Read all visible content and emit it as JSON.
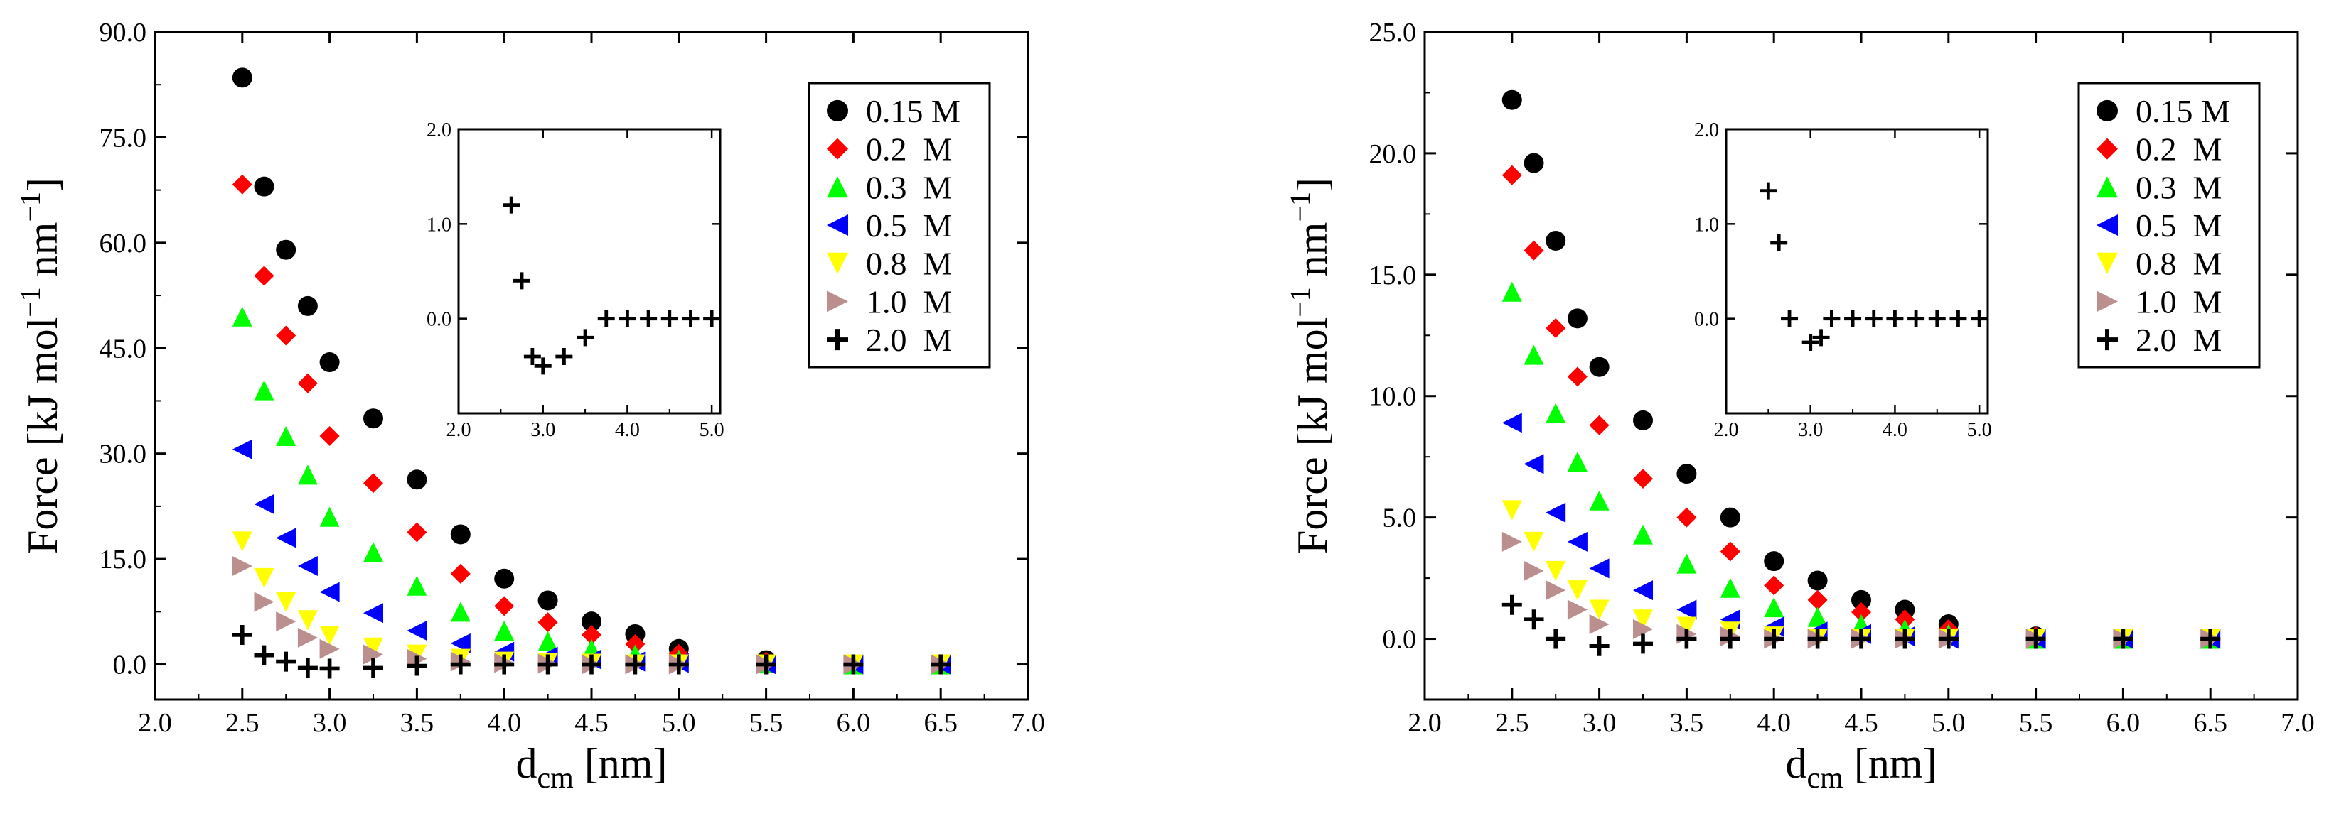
{
  "chart_data": [
    {
      "type": "scatter",
      "title": "",
      "xlabel_main": "d",
      "xlabel_sub": "cm",
      "xlabel_unit": "[nm]",
      "ylabel": "Force [kJ mol",
      "ylabel_mid": " nm",
      "ylabel_close": "]",
      "ylabel_sup": "−1",
      "xlim": [
        2.0,
        7.0
      ],
      "ylim": [
        -5.0,
        90.0
      ],
      "xticks": [
        2.0,
        2.5,
        3.0,
        3.5,
        4.0,
        4.5,
        5.0,
        5.5,
        6.0,
        6.5,
        7.0
      ],
      "xtick_labels": [
        "2.0",
        "2.5",
        "3.0",
        "3.5",
        "4.0",
        "4.5",
        "5.0",
        "5.5",
        "6.0",
        "6.5",
        "7.0"
      ],
      "yticks": [
        0,
        15,
        30,
        45,
        60,
        75,
        90
      ],
      "ytick_labels": [
        "0.0",
        "15.0",
        "30.0",
        "45.0",
        "60.0",
        "75.0",
        "90.0"
      ],
      "legend_position": "top-right",
      "series": [
        {
          "name": "0.15 M",
          "marker": "circle",
          "color": "#000000",
          "x": [
            2.5,
            2.625,
            2.75,
            2.875,
            3.0,
            3.25,
            3.5,
            3.75,
            4.0,
            4.25,
            4.5,
            4.75,
            5.0,
            5.5,
            6.0,
            6.5
          ],
          "y": [
            83.5,
            68,
            59,
            51,
            43,
            35,
            26.3,
            18.5,
            12.2,
            9.1,
            6.1,
            4.3,
            2.2,
            0.6,
            0,
            0
          ]
        },
        {
          "name": "0.2  M",
          "marker": "diamond",
          "color": "#ff0000",
          "x": [
            2.5,
            2.625,
            2.75,
            2.875,
            3.0,
            3.25,
            3.5,
            3.75,
            4.0,
            4.25,
            4.5,
            4.75,
            5.0,
            5.5,
            6.0,
            6.5
          ],
          "y": [
            68.3,
            55.3,
            46.8,
            40,
            32.5,
            25.8,
            18.8,
            12.9,
            8.3,
            6,
            4.2,
            2.9,
            1.5,
            0.4,
            0,
            0
          ]
        },
        {
          "name": "0.3  M",
          "marker": "triangle-up",
          "color": "#00ff00",
          "x": [
            2.5,
            2.625,
            2.75,
            2.875,
            3.0,
            3.25,
            3.5,
            3.75,
            4.0,
            4.25,
            4.5,
            4.75,
            5.0,
            5.5,
            6.0,
            6.5
          ],
          "y": [
            49.5,
            39,
            32.5,
            27,
            21,
            16,
            11.2,
            7.5,
            4.8,
            3.3,
            2.2,
            1.4,
            0.7,
            0.2,
            0,
            0
          ]
        },
        {
          "name": "0.5  M",
          "marker": "triangle-left",
          "color": "#0000ff",
          "x": [
            2.5,
            2.625,
            2.75,
            2.875,
            3.0,
            3.25,
            3.5,
            3.75,
            4.0,
            4.25,
            4.5,
            4.75,
            5.0,
            5.5,
            6.0,
            6.5
          ],
          "y": [
            30.6,
            22.8,
            18,
            14,
            10.3,
            7.3,
            4.8,
            3,
            1.8,
            1.1,
            0.7,
            0.4,
            0.2,
            0,
            0,
            0
          ]
        },
        {
          "name": "0.8  M",
          "marker": "triangle-down",
          "color": "#ffff00",
          "x": [
            2.5,
            2.625,
            2.75,
            2.875,
            3.0,
            3.25,
            3.5,
            3.75,
            4.0,
            4.25,
            4.5,
            4.75,
            5.0,
            5.5,
            6.0,
            6.5
          ],
          "y": [
            17.5,
            12.3,
            8.9,
            6.3,
            4.1,
            2.4,
            1.4,
            0.8,
            0.4,
            0.2,
            0.1,
            0,
            0,
            0,
            0,
            0
          ]
        },
        {
          "name": "1.0  M",
          "marker": "triangle-right",
          "color": "#bc8f8f",
          "x": [
            2.5,
            2.625,
            2.75,
            2.875,
            3.0,
            3.25,
            3.5,
            3.75,
            4.0,
            4.25,
            4.5,
            4.75,
            5.0,
            5.5,
            6.0,
            6.5
          ],
          "y": [
            14,
            8.9,
            6.1,
            3.8,
            2.2,
            1.4,
            0.8,
            0.4,
            0.2,
            0.1,
            0,
            0,
            0,
            0,
            0,
            0
          ]
        },
        {
          "name": "2.0  M",
          "marker": "plus",
          "color": "#000000",
          "x": [
            2.5,
            2.625,
            2.75,
            2.875,
            3.0,
            3.25,
            3.5,
            3.75,
            4.0,
            4.25,
            4.5,
            4.75,
            5.0,
            5.5,
            6.0,
            6.5
          ],
          "y": [
            4.2,
            1.3,
            0.4,
            -0.5,
            -0.6,
            -0.5,
            -0.2,
            0,
            0,
            0,
            0,
            0,
            0,
            0,
            0,
            0
          ]
        }
      ],
      "inset": {
        "xlim": [
          2.0,
          5.1
        ],
        "ylim": [
          -1.0,
          2.0
        ],
        "xticks": [
          2.0,
          3.0,
          4.0,
          5.0
        ],
        "xtick_labels": [
          "2.0",
          "3.0",
          "4.0",
          "5.0"
        ],
        "yticks": [
          0.0,
          1.0,
          2.0
        ],
        "ytick_labels": [
          "0.0",
          "1.0",
          "2.0"
        ],
        "series": {
          "name": "2.0 M",
          "marker": "plus",
          "color": "#000000",
          "x": [
            2.625,
            2.75,
            2.875,
            3.0,
            3.25,
            3.5,
            3.75,
            4.0,
            4.25,
            4.5,
            4.75,
            5.0
          ],
          "y": [
            1.2,
            0.4,
            -0.4,
            -0.5,
            -0.4,
            -0.2,
            0,
            0,
            0,
            0,
            0,
            0
          ]
        }
      }
    },
    {
      "type": "scatter",
      "title": "",
      "xlabel_main": "d",
      "xlabel_sub": "cm",
      "xlabel_unit": "[nm]",
      "ylabel": "Force [kJ mol",
      "ylabel_mid": " nm",
      "ylabel_close": "]",
      "ylabel_sup": "−1",
      "xlim": [
        2.0,
        7.0
      ],
      "ylim": [
        -2.5,
        25.0
      ],
      "xticks": [
        2.0,
        2.5,
        3.0,
        3.5,
        4.0,
        4.5,
        5.0,
        5.5,
        6.0,
        6.5,
        7.0
      ],
      "xtick_labels": [
        "2.0",
        "2.5",
        "3.0",
        "3.5",
        "4.0",
        "4.5",
        "5.0",
        "5.5",
        "6.0",
        "6.5",
        "7.0"
      ],
      "yticks": [
        0,
        5,
        10,
        15,
        20,
        25
      ],
      "ytick_labels": [
        "0.0",
        "5.0",
        "10.0",
        "15.0",
        "20.0",
        "25.0"
      ],
      "legend_position": "top-right",
      "series": [
        {
          "name": "0.15 M",
          "marker": "circle",
          "color": "#000000",
          "x": [
            2.5,
            2.625,
            2.75,
            2.875,
            3.0,
            3.25,
            3.5,
            3.75,
            4.0,
            4.25,
            4.5,
            4.75,
            5.0,
            5.5,
            6.0,
            6.5
          ],
          "y": [
            22.2,
            19.6,
            16.4,
            13.2,
            11.2,
            9,
            6.8,
            5,
            3.2,
            2.4,
            1.6,
            1.2,
            0.6,
            0.1,
            0,
            0
          ]
        },
        {
          "name": "0.2  M",
          "marker": "diamond",
          "color": "#ff0000",
          "x": [
            2.5,
            2.625,
            2.75,
            2.875,
            3.0,
            3.25,
            3.5,
            3.75,
            4.0,
            4.25,
            4.5,
            4.75,
            5.0,
            5.5,
            6.0,
            6.5
          ],
          "y": [
            19.1,
            16,
            12.8,
            10.8,
            8.8,
            6.6,
            5,
            3.6,
            2.2,
            1.6,
            1.1,
            0.8,
            0.4,
            0.1,
            0,
            0
          ]
        },
        {
          "name": "0.3  M",
          "marker": "triangle-up",
          "color": "#00ff00",
          "x": [
            2.5,
            2.625,
            2.75,
            2.875,
            3.0,
            3.25,
            3.5,
            3.75,
            4.0,
            4.25,
            4.5,
            4.75,
            5.0,
            5.5,
            6.0,
            6.5
          ],
          "y": [
            14.3,
            11.7,
            9.3,
            7.3,
            5.7,
            4.3,
            3.1,
            2.1,
            1.3,
            0.9,
            0.6,
            0.4,
            0.2,
            0,
            0,
            0
          ]
        },
        {
          "name": "0.5  M",
          "marker": "triangle-left",
          "color": "#0000ff",
          "x": [
            2.5,
            2.625,
            2.75,
            2.875,
            3.0,
            3.25,
            3.5,
            3.75,
            4.0,
            4.25,
            4.5,
            4.75,
            5.0,
            5.5,
            6.0,
            6.5
          ],
          "y": [
            8.9,
            7.2,
            5.2,
            4,
            2.9,
            2,
            1.2,
            0.8,
            0.5,
            0.3,
            0.2,
            0.1,
            0,
            0,
            0,
            0
          ]
        },
        {
          "name": "0.8  M",
          "marker": "triangle-down",
          "color": "#ffff00",
          "x": [
            2.5,
            2.625,
            2.75,
            2.875,
            3.0,
            3.25,
            3.5,
            3.75,
            4.0,
            4.25,
            4.5,
            4.75,
            5.0,
            5.5,
            6.0,
            6.5
          ],
          "y": [
            5.3,
            4,
            2.8,
            2,
            1.2,
            0.8,
            0.5,
            0.3,
            0.1,
            0,
            0,
            0,
            0,
            0,
            0,
            0
          ]
        },
        {
          "name": "1.0  M",
          "marker": "triangle-right",
          "color": "#bc8f8f",
          "x": [
            2.5,
            2.625,
            2.75,
            2.875,
            3.0,
            3.25,
            3.5,
            3.75,
            4.0,
            4.25,
            4.5,
            4.75,
            5.0,
            5.5,
            6.0,
            6.5
          ],
          "y": [
            4,
            2.8,
            2,
            1.2,
            0.6,
            0.4,
            0.2,
            0.1,
            0,
            0,
            0,
            0,
            0,
            0,
            0,
            0
          ]
        },
        {
          "name": "2.0  M",
          "marker": "plus",
          "color": "#000000",
          "x": [
            2.5,
            2.625,
            2.75,
            3.0,
            3.25,
            3.5,
            3.75,
            4.0,
            4.25,
            4.5,
            4.75,
            5.0,
            5.5,
            6.0,
            6.5
          ],
          "y": [
            1.4,
            0.8,
            0,
            -0.3,
            -0.2,
            0,
            0,
            0,
            0,
            0,
            0,
            0,
            0,
            0,
            0
          ]
        }
      ],
      "inset": {
        "xlim": [
          2.0,
          5.1
        ],
        "ylim": [
          -1.0,
          2.0
        ],
        "xticks": [
          2.0,
          3.0,
          4.0,
          5.0
        ],
        "xtick_labels": [
          "2.0",
          "3.0",
          "4.0",
          "5.0"
        ],
        "yticks": [
          0.0,
          1.0,
          2.0
        ],
        "ytick_labels": [
          "0.0",
          "1.0",
          "2.0"
        ],
        "series": {
          "name": "2.0 M",
          "marker": "plus",
          "color": "#000000",
          "x": [
            2.5,
            2.625,
            2.75,
            3.0,
            3.125,
            3.25,
            3.5,
            3.75,
            4.0,
            4.25,
            4.5,
            4.75,
            5.0
          ],
          "y": [
            1.35,
            0.8,
            0,
            -0.25,
            -0.2,
            0,
            0,
            0,
            0,
            0,
            0,
            0,
            0
          ]
        }
      }
    }
  ]
}
